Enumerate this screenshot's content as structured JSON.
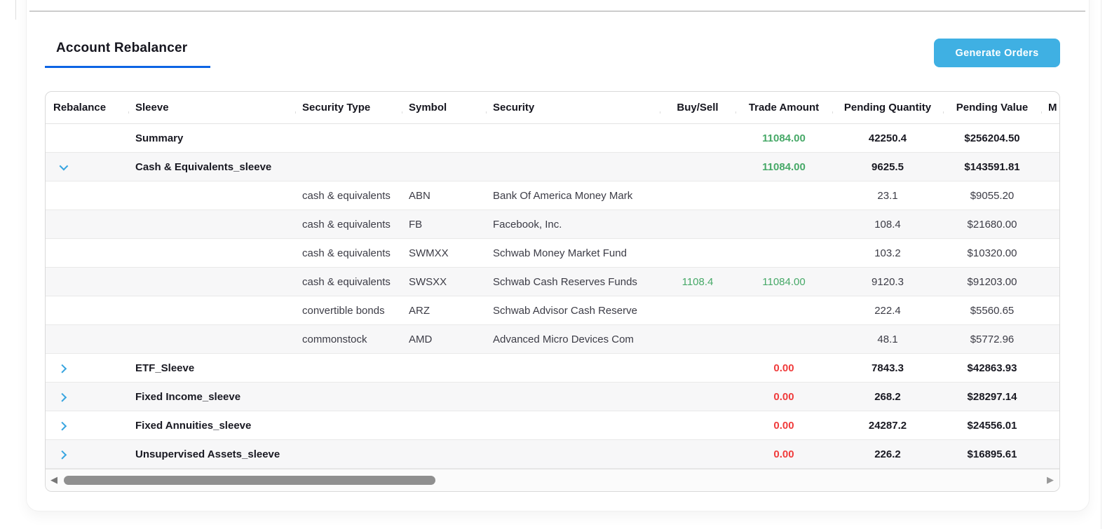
{
  "page": {
    "tab_label": "Account Rebalancer",
    "generate_orders_label": "Generate Orders"
  },
  "colors": {
    "tab_underline_blue": "#0d64e4",
    "button_blue": "#3fb0e3",
    "chevron_blue": "#38a5e0",
    "positive_green": "#47a968",
    "negative_red": "#f03c3c"
  },
  "icons": {
    "left_arrow": "◀",
    "right_arrow": "▶",
    "expanded_chevron": "chevron-down",
    "collapsed_chevron": "chevron-right"
  },
  "table": {
    "columns": [
      "Rebalance",
      "Sleeve",
      "Security Type",
      "Symbol",
      "Security",
      "Buy/Sell",
      "Trade Amount",
      "Pending Quantity",
      "Pending Value",
      "M"
    ],
    "rows": [
      {
        "chevron": "",
        "sleeve": "Summary",
        "security_type": "",
        "symbol": "",
        "security": "",
        "buy_sell": "",
        "trade_amount": "11084.00",
        "pending_quantity": "42250.4",
        "pending_value": "$256204.50"
      },
      {
        "chevron": "down",
        "sleeve": "Cash & Equivalents_sleeve",
        "security_type": "",
        "symbol": "",
        "security": "",
        "buy_sell": "",
        "trade_amount": "11084.00",
        "pending_quantity": "9625.5",
        "pending_value": "$143591.81"
      },
      {
        "chevron": "",
        "sleeve": "",
        "security_type": "cash & equivalents",
        "symbol": "ABN",
        "security": "Bank Of America Money Mark",
        "buy_sell": "",
        "trade_amount": "",
        "pending_quantity": "23.1",
        "pending_value": "$9055.20"
      },
      {
        "chevron": "",
        "sleeve": "",
        "security_type": "cash & equivalents",
        "symbol": "FB",
        "security": "Facebook, Inc.",
        "buy_sell": "",
        "trade_amount": "",
        "pending_quantity": "108.4",
        "pending_value": "$21680.00"
      },
      {
        "chevron": "",
        "sleeve": "",
        "security_type": "cash & equivalents",
        "symbol": "SWMXX",
        "security": "Schwab Money Market Fund",
        "buy_sell": "",
        "trade_amount": "",
        "pending_quantity": "103.2",
        "pending_value": "$10320.00"
      },
      {
        "chevron": "",
        "sleeve": "",
        "security_type": "cash & equivalents",
        "symbol": "SWSXX",
        "security": "Schwab Cash Reserves Funds",
        "buy_sell": "1108.4",
        "trade_amount": "11084.00",
        "pending_quantity": "9120.3",
        "pending_value": "$91203.00"
      },
      {
        "chevron": "",
        "sleeve": "",
        "security_type": "convertible bonds",
        "symbol": "ARZ",
        "security": "Schwab Advisor Cash Reserve",
        "buy_sell": "",
        "trade_amount": "",
        "pending_quantity": "222.4",
        "pending_value": "$5560.65"
      },
      {
        "chevron": "",
        "sleeve": "",
        "security_type": "commonstock",
        "symbol": "AMD",
        "security": "Advanced Micro Devices Com",
        "buy_sell": "",
        "trade_amount": "",
        "pending_quantity": "48.1",
        "pending_value": "$5772.96"
      },
      {
        "chevron": "right",
        "sleeve": "ETF_Sleeve",
        "security_type": "",
        "symbol": "",
        "security": "",
        "buy_sell": "",
        "trade_amount": "0.00",
        "pending_quantity": "7843.3",
        "pending_value": "$42863.93"
      },
      {
        "chevron": "right",
        "sleeve": "Fixed Income_sleeve",
        "security_type": "",
        "symbol": "",
        "security": "",
        "buy_sell": "",
        "trade_amount": "0.00",
        "pending_quantity": "268.2",
        "pending_value": "$28297.14"
      },
      {
        "chevron": "right",
        "sleeve": "Fixed Annuities_sleeve",
        "security_type": "",
        "symbol": "",
        "security": "",
        "buy_sell": "",
        "trade_amount": "0.00",
        "pending_quantity": "24287.2",
        "pending_value": "$24556.01"
      },
      {
        "chevron": "right",
        "sleeve": "Unsupervised Assets_sleeve",
        "security_type": "",
        "symbol": "",
        "security": "",
        "buy_sell": "",
        "trade_amount": "0.00",
        "pending_quantity": "226.2",
        "pending_value": "$16895.61"
      }
    ]
  }
}
